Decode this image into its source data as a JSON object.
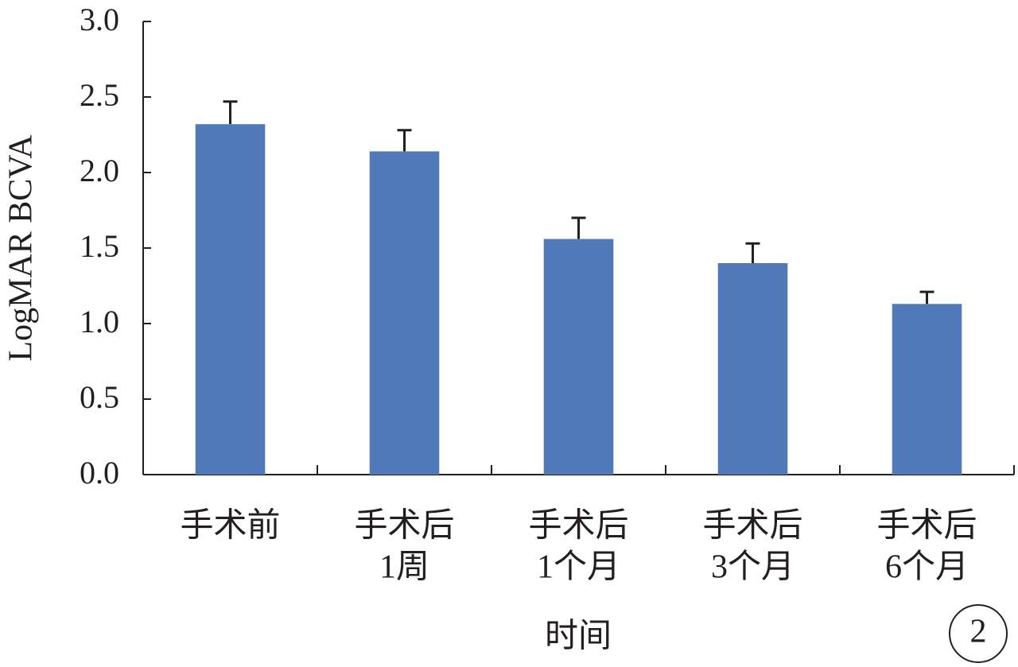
{
  "chart_data": {
    "type": "bar",
    "y_label": "LogMAR BCVA",
    "x_label": "时间",
    "annotation": "2",
    "categories": [
      [
        "手术前"
      ],
      [
        "手术后",
        "1周"
      ],
      [
        "手术后",
        "1个月"
      ],
      [
        "手术后",
        "3个月"
      ],
      [
        "手术后",
        "6个月"
      ]
    ],
    "values": [
      2.32,
      2.14,
      1.56,
      1.4,
      1.13
    ],
    "errors": [
      0.15,
      0.14,
      0.14,
      0.13,
      0.08
    ],
    "color": "#4f79b8",
    "ylim": [
      0,
      3
    ],
    "yticks": [
      {
        "value": 0,
        "label": "0.0"
      },
      0.5,
      {
        "value": 1,
        "label": "1.0"
      },
      1.5,
      {
        "value": 2,
        "label": "2.0"
      },
      2.5,
      {
        "value": 3,
        "label": "3.0"
      }
    ]
  }
}
